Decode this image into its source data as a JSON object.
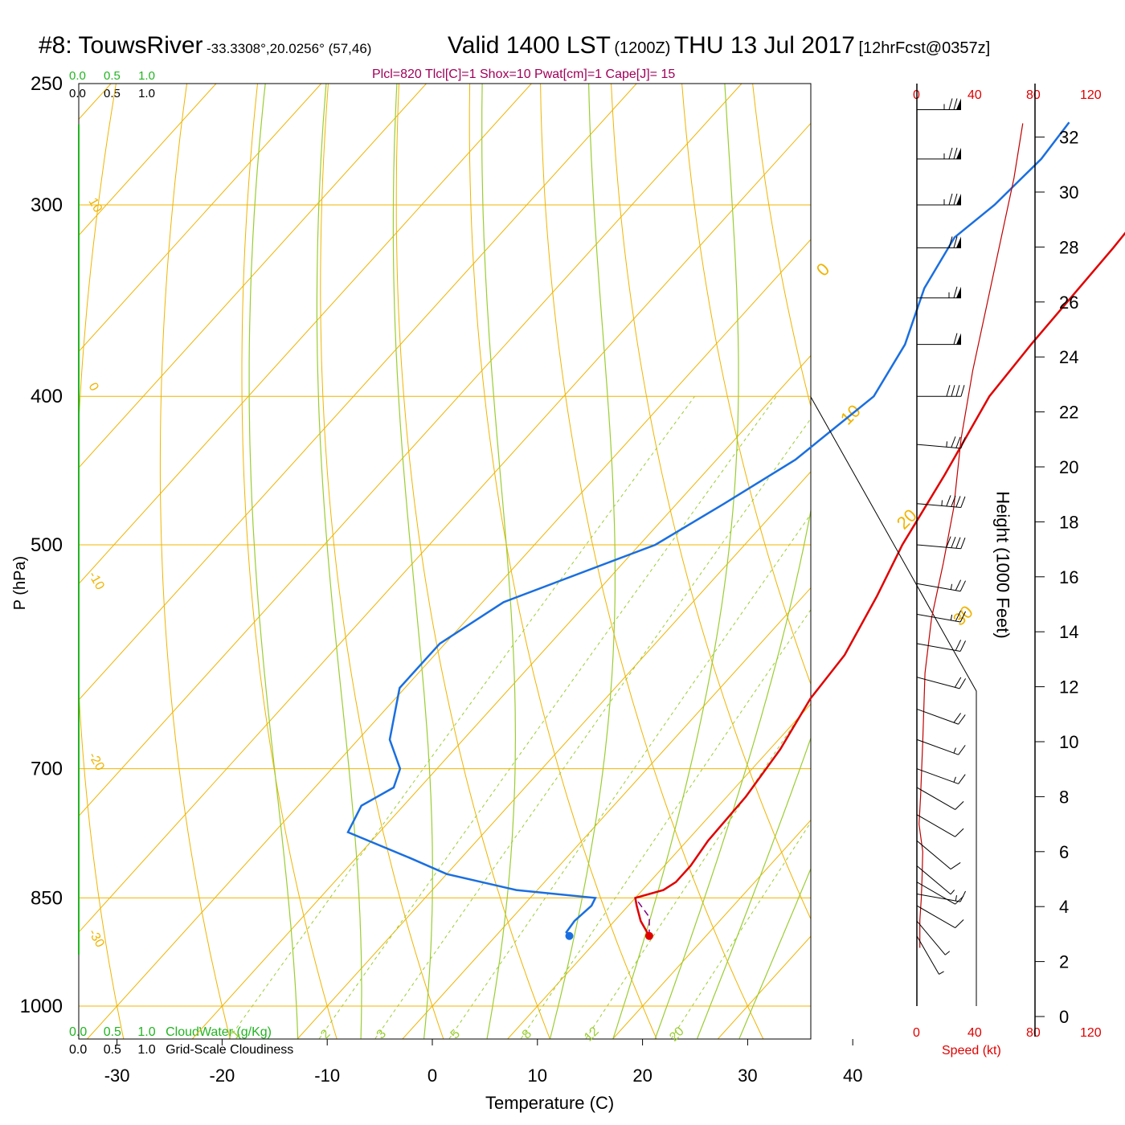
{
  "header": {
    "station": "#8: TouwsRiver",
    "coords": "-33.3308°,20.0256° (57,46)",
    "valid": "Valid 1400 LST",
    "utc": "(1200Z)",
    "date": "THU 13 Jul 2017",
    "forecast": "[12hrFcst@0357z]"
  },
  "indices_line": "Plcl=820 Tlcl[C]=1 Shox=10 Pwat[cm]=1 Cape[J]= 15",
  "top_scales": {
    "cloud_water_ticks": [
      "0.0",
      "0.5",
      "1.0"
    ],
    "cloudiness_ticks": [
      "0.0",
      "0.5",
      "1.0"
    ]
  },
  "bottom_scales": {
    "cloud_water_ticks": [
      "0.0",
      "0.5",
      "1.0"
    ],
    "cloud_water_label": "CloudWater (g/Kg)",
    "cloudiness_ticks": [
      "0.0",
      "0.5",
      "1.0"
    ],
    "cloudiness_label": "Grid-Scale Cloudiness"
  },
  "wind_speed_axis": {
    "ticks": [
      "0",
      "40",
      "80",
      "120"
    ],
    "label": "Speed (kt)"
  },
  "colors": {
    "isobar": "#f0b400",
    "dry_adiabat": "#9acd32",
    "mixing_ratio": "#9acd32",
    "temperature": "#e00000",
    "dewpoint": "#1a6fe0",
    "parcel": "#800080",
    "speed_profile": "#c00000"
  },
  "chart_data": {
    "type": "line",
    "title": "",
    "xlabel": "Temperature (C)",
    "ylabel": "P (hPa)",
    "y2label": "Height (1000 Feet)",
    "x_ticks": [
      -30,
      -20,
      -10,
      0,
      10,
      20,
      30,
      40
    ],
    "p_ticks": [
      250,
      300,
      400,
      500,
      700,
      850,
      1000
    ],
    "height_ticks": [
      0,
      2,
      4,
      6,
      8,
      10,
      12,
      14,
      16,
      18,
      20,
      22,
      24,
      26,
      28,
      30,
      32
    ],
    "mixing_ratio_labels": [
      "1",
      "2",
      "3",
      "5",
      "8",
      "12",
      "20"
    ],
    "isotherm_labels": [
      "10",
      "0",
      "-10",
      "-20",
      "-30",
      "0",
      "10",
      "20",
      "30"
    ],
    "series": [
      {
        "name": "",
        "values": [
          [
            900,
            14.6
          ],
          [
            880,
            12.5
          ],
          [
            860,
            10.8
          ],
          [
            850,
            10.0
          ],
          [
            840,
            12.0
          ],
          [
            830,
            12.5
          ],
          [
            810,
            12.5
          ],
          [
            780,
            12.0
          ],
          [
            730,
            11.8
          ],
          [
            680,
            11.0
          ],
          [
            630,
            9.5
          ],
          [
            590,
            9.0
          ],
          [
            540,
            7.0
          ],
          [
            500,
            5.0
          ],
          [
            450,
            3.0
          ],
          [
            400,
            0.5
          ],
          [
            370,
            0.0
          ],
          [
            320,
            -0.5
          ],
          [
            295,
            -1.0
          ],
          [
            265,
            -2.5
          ]
        ]
      },
      {
        "name": "",
        "values": [
          [
            900,
            7.0
          ],
          [
            895,
            6.4
          ],
          [
            880,
            6.2
          ],
          [
            860,
            6.5
          ],
          [
            850,
            6.2
          ],
          [
            840,
            -2.0
          ],
          [
            820,
            -10.0
          ],
          [
            800,
            -15.0
          ],
          [
            770,
            -23.0
          ],
          [
            740,
            -24.0
          ],
          [
            720,
            -22.5
          ],
          [
            700,
            -23.5
          ],
          [
            670,
            -27.0
          ],
          [
            620,
            -30.5
          ],
          [
            580,
            -30.5
          ],
          [
            545,
            -28.0
          ],
          [
            500,
            -18.5
          ],
          [
            470,
            -15.5
          ],
          [
            440,
            -12.5
          ],
          [
            400,
            -10.5
          ],
          [
            370,
            -12.0
          ],
          [
            340,
            -15.0
          ],
          [
            315,
            -16.5
          ],
          [
            300,
            -15.5
          ],
          [
            280,
            -15.0
          ],
          [
            265,
            -15.5
          ]
        ]
      },
      {
        "name": "",
        "values": [
          [
            900,
            14.6
          ],
          [
            875,
            13.0
          ],
          [
            850,
            10.0
          ]
        ]
      }
    ],
    "surface_points": [
      {
        "name": "",
        "p": 900,
        "t": 14.6
      },
      {
        "name": "",
        "p": 900,
        "t": 7.0
      }
    ],
    "wind_speed_profile": [
      [
        2.5,
        2.0
      ],
      [
        3.5,
        2.0
      ],
      [
        4.3,
        3.0
      ],
      [
        5.0,
        3.5
      ],
      [
        6.0,
        4.0
      ],
      [
        7.0,
        1.5
      ],
      [
        8.0,
        2.5
      ],
      [
        10.0,
        4.0
      ],
      [
        12.5,
        5.5
      ],
      [
        14.5,
        10.0
      ],
      [
        16.5,
        18.0
      ],
      [
        18.5,
        25.0
      ],
      [
        21.0,
        30.0
      ],
      [
        23.5,
        38.0
      ],
      [
        25.5,
        46.0
      ],
      [
        28.0,
        56.0
      ],
      [
        30.5,
        66.0
      ],
      [
        32.5,
        72.0
      ]
    ],
    "wind_barbs": [
      {
        "p": 900,
        "dir": 330,
        "spd": 5
      },
      {
        "p": 880,
        "dir": 320,
        "spd": 8
      },
      {
        "p": 860,
        "dir": 300,
        "spd": 10
      },
      {
        "p": 845,
        "dir": 280,
        "spd": 15
      },
      {
        "p": 830,
        "dir": 300,
        "spd": 10
      },
      {
        "p": 810,
        "dir": 310,
        "spd": 8
      },
      {
        "p": 780,
        "dir": 310,
        "spd": 10
      },
      {
        "p": 750,
        "dir": 300,
        "spd": 10
      },
      {
        "p": 720,
        "dir": 300,
        "spd": 10
      },
      {
        "p": 700,
        "dir": 290,
        "spd": 15
      },
      {
        "p": 670,
        "dir": 290,
        "spd": 15
      },
      {
        "p": 640,
        "dir": 290,
        "spd": 20
      },
      {
        "p": 610,
        "dir": 285,
        "spd": 20
      },
      {
        "p": 580,
        "dir": 280,
        "spd": 20
      },
      {
        "p": 555,
        "dir": 280,
        "spd": 25
      },
      {
        "p": 530,
        "dir": 280,
        "spd": 25
      },
      {
        "p": 500,
        "dir": 275,
        "spd": 40
      },
      {
        "p": 470,
        "dir": 275,
        "spd": 45
      },
      {
        "p": 430,
        "dir": 275,
        "spd": 35
      },
      {
        "p": 400,
        "dir": 270,
        "spd": 40
      },
      {
        "p": 370,
        "dir": 270,
        "spd": 60
      },
      {
        "p": 345,
        "dir": 270,
        "spd": 65
      },
      {
        "p": 320,
        "dir": 270,
        "spd": 70
      },
      {
        "p": 300,
        "dir": 270,
        "spd": 75
      },
      {
        "p": 280,
        "dir": 270,
        "spd": 75
      },
      {
        "p": 260,
        "dir": 270,
        "spd": 75
      }
    ]
  }
}
